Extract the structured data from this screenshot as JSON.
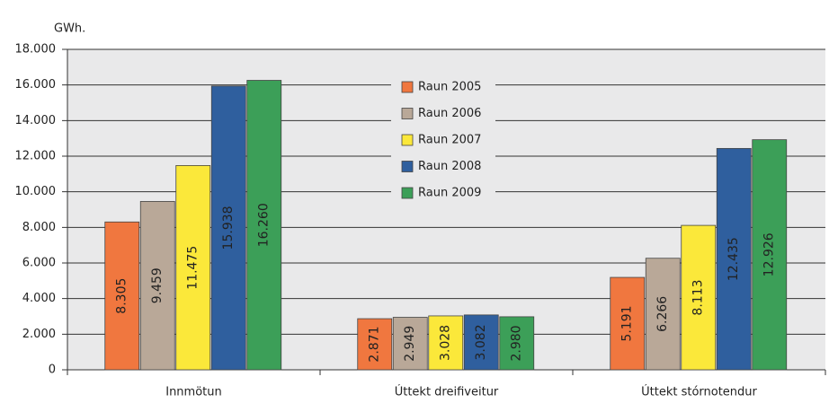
{
  "chart_data": {
    "type": "bar",
    "y_label": "GWh.",
    "categories": [
      "Innmötun",
      "Úttekt dreifiveitur",
      "Úttekt stórnotendur"
    ],
    "series": [
      {
        "name": "Raun 2005",
        "color": "#f0773f",
        "values": [
          8305,
          2871,
          5191
        ],
        "value_labels": [
          "8.305",
          "2.871",
          "5.191"
        ]
      },
      {
        "name": "Raun 2006",
        "color": "#b9a898",
        "values": [
          9459,
          2949,
          6266
        ],
        "value_labels": [
          "9.459",
          "2.949",
          "6.266"
        ]
      },
      {
        "name": "Raun 2007",
        "color": "#fbe83a",
        "values": [
          11475,
          3028,
          8113
        ],
        "value_labels": [
          "11.475",
          "3.028",
          "8.113"
        ]
      },
      {
        "name": "Raun 2008",
        "color": "#2f5f9e",
        "values": [
          15938,
          3082,
          12435
        ],
        "value_labels": [
          "15.938",
          "3.082",
          "12.435"
        ]
      },
      {
        "name": "Raun 2009",
        "color": "#3c9f58",
        "values": [
          16260,
          2980,
          12926
        ],
        "value_labels": [
          "16.260",
          "2.980",
          "12.926"
        ]
      }
    ],
    "ylim": [
      0,
      18000
    ],
    "yticks": [
      0,
      {
        "value": 2000,
        "label": "2.000"
      },
      {
        "value": 4000,
        "label": "4.000"
      },
      {
        "value": 6000,
        "label": "6.000"
      },
      {
        "value": 8000,
        "label": "8.000"
      },
      {
        "value": 10000,
        "label": "10.000"
      },
      {
        "value": 12000,
        "label": "12.000"
      },
      {
        "value": 14000,
        "label": "14.000"
      },
      {
        "value": 16000,
        "label": "16.000"
      },
      {
        "value": 18000,
        "label": "18.000"
      }
    ],
    "grid": true
  }
}
